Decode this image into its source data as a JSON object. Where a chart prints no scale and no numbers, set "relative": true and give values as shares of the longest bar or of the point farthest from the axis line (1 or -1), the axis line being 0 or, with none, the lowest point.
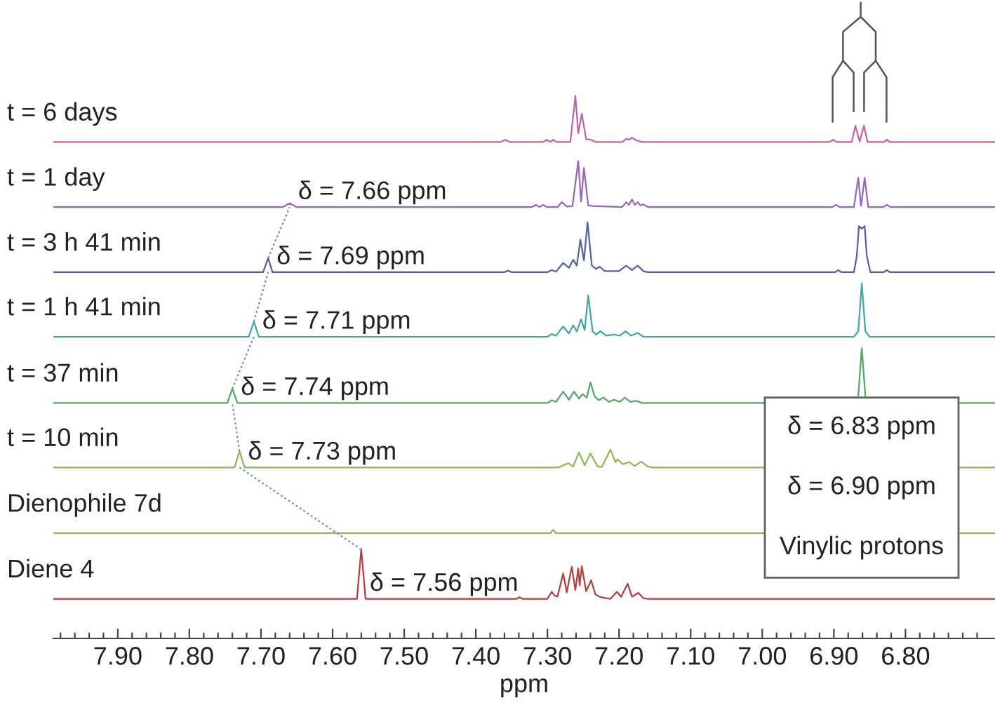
{
  "chart_data": {
    "type": "line",
    "relative": true,
    "xlabel": "ppm",
    "tick_labels": "x",
    "xlim": [
      7.99,
      6.675
    ],
    "xticks": [
      {
        "value": 7.98,
        "label": null
      },
      {
        "value": 7.96,
        "label": null
      },
      {
        "value": 7.94,
        "label": null
      },
      {
        "value": 7.92,
        "label": null
      },
      {
        "value": 7.9,
        "label": "7.90"
      },
      {
        "value": 7.88,
        "label": null
      },
      {
        "value": 7.86,
        "label": null
      },
      {
        "value": 7.84,
        "label": null
      },
      {
        "value": 7.82,
        "label": null
      },
      {
        "value": 7.8,
        "label": "7.80"
      },
      {
        "value": 7.78,
        "label": null
      },
      {
        "value": 7.76,
        "label": null
      },
      {
        "value": 7.74,
        "label": null
      },
      {
        "value": 7.72,
        "label": null
      },
      {
        "value": 7.7,
        "label": "7.70"
      },
      {
        "value": 7.68,
        "label": null
      },
      {
        "value": 7.66,
        "label": null
      },
      {
        "value": 7.64,
        "label": null
      },
      {
        "value": 7.62,
        "label": null
      },
      {
        "value": 7.6,
        "label": "7.60"
      },
      {
        "value": 7.58,
        "label": null
      },
      {
        "value": 7.56,
        "label": null
      },
      {
        "value": 7.54,
        "label": null
      },
      {
        "value": 7.52,
        "label": null
      },
      {
        "value": 7.5,
        "label": "7.50"
      },
      {
        "value": 7.48,
        "label": null
      },
      {
        "value": 7.46,
        "label": null
      },
      {
        "value": 7.44,
        "label": null
      },
      {
        "value": 7.42,
        "label": null
      },
      {
        "value": 7.4,
        "label": "7.40"
      },
      {
        "value": 7.38,
        "label": null
      },
      {
        "value": 7.36,
        "label": null
      },
      {
        "value": 7.34,
        "label": null
      },
      {
        "value": 7.32,
        "label": null
      },
      {
        "value": 7.3,
        "label": "7.30"
      },
      {
        "value": 7.28,
        "label": null
      },
      {
        "value": 7.26,
        "label": null
      },
      {
        "value": 7.24,
        "label": null
      },
      {
        "value": 7.22,
        "label": null
      },
      {
        "value": 7.2,
        "label": "7.20"
      },
      {
        "value": 7.18,
        "label": null
      },
      {
        "value": 7.16,
        "label": null
      },
      {
        "value": 7.14,
        "label": null
      },
      {
        "value": 7.12,
        "label": null
      },
      {
        "value": 7.1,
        "label": "7.10"
      },
      {
        "value": 7.08,
        "label": null
      },
      {
        "value": 7.06,
        "label": null
      },
      {
        "value": 7.04,
        "label": null
      },
      {
        "value": 7.02,
        "label": null
      },
      {
        "value": 7.0,
        "label": "7.00"
      },
      {
        "value": 6.98,
        "label": null
      },
      {
        "value": 6.96,
        "label": null
      },
      {
        "value": 6.94,
        "label": null
      },
      {
        "value": 6.92,
        "label": null
      },
      {
        "value": 6.9,
        "label": "6.90"
      },
      {
        "value": 6.88,
        "label": null
      },
      {
        "value": 6.86,
        "label": null
      },
      {
        "value": 6.84,
        "label": null
      },
      {
        "value": 6.82,
        "label": null
      },
      {
        "value": 6.8,
        "label": "6.80"
      },
      {
        "value": 6.78,
        "label": null
      },
      {
        "value": 6.76,
        "label": null
      },
      {
        "value": 6.74,
        "label": null
      },
      {
        "value": 6.72,
        "label": null
      },
      {
        "value": 6.7,
        "label": null
      }
    ],
    "series": [
      {
        "name": "t = 6 days",
        "color": "#c660a4",
        "x": [
          7.99,
          7.365,
          7.359,
          7.353,
          7.306,
          7.301,
          7.296,
          7.292,
          7.287,
          7.268,
          7.261,
          7.257,
          7.252,
          7.246,
          7.239,
          7.233,
          7.195,
          7.19,
          7.186,
          7.182,
          7.176,
          7.168,
          6.906,
          6.901,
          6.896,
          6.875,
          6.87,
          6.864,
          6.858,
          6.853,
          6.83,
          6.826,
          6.822,
          6.675
        ],
        "values": [
          0.915,
          0.915,
          0.919,
          0.915,
          0.915,
          0.919,
          0.915,
          0.919,
          0.915,
          0.915,
          1.0,
          0.931,
          0.967,
          0.92,
          0.919,
          0.915,
          0.915,
          0.921,
          0.919,
          0.923,
          0.918,
          0.915,
          0.915,
          0.919,
          0.915,
          0.915,
          0.945,
          0.916,
          0.945,
          0.915,
          0.915,
          0.919,
          0.915,
          0.915
        ]
      },
      {
        "name": "t = 1 day",
        "color": "#9a64bc",
        "x": [
          7.99,
          7.67,
          7.66,
          7.65,
          7.322,
          7.316,
          7.311,
          7.306,
          7.301,
          7.286,
          7.28,
          7.273,
          7.265,
          7.257,
          7.253,
          7.249,
          7.243,
          7.236,
          7.196,
          7.19,
          7.186,
          7.182,
          7.178,
          7.174,
          7.17,
          7.166,
          7.16,
          6.902,
          6.897,
          6.892,
          6.872,
          6.866,
          6.862,
          6.857,
          6.852,
          6.831,
          6.826,
          6.821,
          6.675
        ],
        "values": [
          0.795,
          0.795,
          0.802,
          0.795,
          0.795,
          0.799,
          0.795,
          0.799,
          0.795,
          0.795,
          0.804,
          0.796,
          0.797,
          0.88,
          0.805,
          0.867,
          0.798,
          0.797,
          0.795,
          0.804,
          0.799,
          0.809,
          0.799,
          0.804,
          0.798,
          0.8,
          0.795,
          0.795,
          0.799,
          0.795,
          0.795,
          0.849,
          0.797,
          0.849,
          0.795,
          0.795,
          0.799,
          0.795,
          0.795
        ]
      },
      {
        "name": "t = 3 h 41 min",
        "color": "#5060b0",
        "x": [
          7.99,
          7.697,
          7.69,
          7.684,
          7.36,
          7.355,
          7.35,
          7.3,
          7.294,
          7.288,
          7.278,
          7.27,
          7.264,
          7.259,
          7.254,
          7.249,
          7.244,
          7.238,
          7.232,
          7.227,
          7.22,
          7.2,
          7.19,
          7.182,
          7.174,
          7.166,
          7.16,
          6.898,
          6.894,
          6.89,
          6.872,
          6.868,
          6.865,
          6.861,
          6.857,
          6.854,
          6.849,
          6.83,
          6.826,
          6.822,
          6.675
        ],
        "values": [
          0.675,
          0.675,
          0.701,
          0.675,
          0.675,
          0.678,
          0.675,
          0.675,
          0.679,
          0.676,
          0.692,
          0.683,
          0.698,
          0.687,
          0.735,
          0.697,
          0.767,
          0.687,
          0.681,
          0.685,
          0.677,
          0.677,
          0.687,
          0.679,
          0.687,
          0.677,
          0.675,
          0.675,
          0.679,
          0.675,
          0.675,
          0.705,
          0.76,
          0.755,
          0.76,
          0.705,
          0.675,
          0.675,
          0.679,
          0.675,
          0.675
        ]
      },
      {
        "name": "t = 1 h 41 min",
        "color": "#3aa8a6",
        "x": [
          7.99,
          7.717,
          7.71,
          7.703,
          7.3,
          7.294,
          7.288,
          7.278,
          7.27,
          7.264,
          7.259,
          7.253,
          7.248,
          7.243,
          7.237,
          7.232,
          7.226,
          7.218,
          7.207,
          7.199,
          7.191,
          7.183,
          7.174,
          7.166,
          6.872,
          6.866,
          6.861,
          6.856,
          6.85,
          6.675
        ],
        "values": [
          0.556,
          0.556,
          0.584,
          0.556,
          0.556,
          0.561,
          0.558,
          0.575,
          0.562,
          0.577,
          0.566,
          0.588,
          0.568,
          0.632,
          0.566,
          0.56,
          0.566,
          0.558,
          0.56,
          0.558,
          0.566,
          0.558,
          0.563,
          0.556,
          0.556,
          0.566,
          0.654,
          0.566,
          0.556,
          0.556
        ]
      },
      {
        "name": "t = 37 min",
        "color": "#4caa62",
        "x": [
          7.99,
          7.747,
          7.74,
          7.733,
          7.3,
          7.294,
          7.288,
          7.278,
          7.27,
          7.263,
          7.256,
          7.251,
          7.245,
          7.24,
          7.234,
          7.228,
          7.222,
          7.214,
          7.207,
          7.199,
          7.192,
          7.184,
          7.176,
          7.168,
          6.998,
          6.99,
          6.866,
          6.861,
          6.856,
          6.85,
          6.724,
          6.675
        ],
        "values": [
          0.434,
          0.434,
          0.46,
          0.434,
          0.434,
          0.439,
          0.436,
          0.455,
          0.44,
          0.455,
          0.442,
          0.45,
          0.444,
          0.472,
          0.446,
          0.439,
          0.444,
          0.436,
          0.44,
          0.436,
          0.444,
          0.436,
          0.438,
          0.434,
          0.434,
          null,
          0.447,
          0.535,
          0.447,
          null,
          0.434,
          0.434
        ]
      },
      {
        "name": "t = 10 min",
        "color": "#8cba52",
        "x": [
          7.99,
          7.737,
          7.73,
          7.723,
          7.285,
          7.271,
          7.264,
          7.256,
          7.248,
          7.24,
          7.23,
          7.224,
          7.212,
          7.205,
          7.202,
          7.195,
          7.186,
          7.178,
          7.169,
          7.16,
          7.153,
          6.998,
          6.99,
          6.724,
          6.675
        ],
        "values": [
          0.315,
          0.315,
          0.345,
          0.315,
          0.315,
          0.323,
          0.317,
          0.343,
          0.319,
          0.341,
          0.317,
          0.316,
          0.348,
          0.325,
          0.33,
          0.321,
          0.325,
          0.318,
          0.326,
          0.317,
          0.315,
          0.315,
          null,
          0.315,
          0.315
        ]
      },
      {
        "name": "Dienophile 7d",
        "color": "#b0a462",
        "x": [
          7.99,
          7.296,
          7.292,
          7.288,
          6.998,
          6.99,
          6.724,
          6.675
        ],
        "values": [
          0.194,
          0.194,
          0.2,
          0.194,
          0.194,
          null,
          0.194,
          0.194
        ]
      },
      {
        "name": "Diene 4",
        "color": "#bc3a3a",
        "x": [
          7.99,
          7.566,
          7.56,
          7.554,
          7.343,
          7.339,
          7.335,
          7.3,
          7.294,
          7.29,
          7.286,
          7.278,
          7.273,
          7.266,
          7.261,
          7.257,
          7.255,
          7.252,
          7.246,
          7.239,
          7.233,
          7.226,
          7.212,
          7.203,
          7.197,
          7.188,
          7.182,
          7.173,
          7.166,
          7.16,
          6.675
        ],
        "values": [
          0.073,
          0.073,
          0.164,
          0.073,
          0.073,
          0.076,
          0.073,
          0.073,
          0.086,
          0.079,
          0.077,
          0.12,
          0.085,
          0.132,
          0.089,
          0.129,
          0.098,
          0.133,
          0.087,
          0.107,
          0.081,
          0.076,
          0.073,
          0.086,
          0.077,
          0.101,
          0.077,
          0.084,
          0.074,
          0.073,
          0.073
        ]
      },
      {
        "type": "line",
        "color": "#7088d0",
        "line_style": "dotted",
        "x": [
          7.56,
          7.73
        ],
        "values": [
          0.164,
          0.315
        ]
      },
      {
        "type": "line",
        "color": "#7088d0",
        "line_style": "dotted",
        "x": [
          7.73,
          7.74
        ],
        "values": [
          0.345,
          0.434
        ]
      },
      {
        "type": "line",
        "color": "#7088d0",
        "line_style": "dotted",
        "x": [
          7.74,
          7.71
        ],
        "values": [
          0.46,
          0.556
        ]
      },
      {
        "type": "line",
        "color": "#7088d0",
        "line_style": "dotted",
        "x": [
          7.71,
          7.69
        ],
        "values": [
          0.584,
          0.675
        ]
      },
      {
        "type": "line",
        "color": "#7088d0",
        "line_style": "dotted",
        "x": [
          7.69,
          7.66
        ],
        "values": [
          0.701,
          0.795
        ]
      }
    ],
    "annotations": [
      {
        "text": "δ = 7.66 ppm",
        "x": 7.66,
        "y": 0.802
      },
      {
        "text": "δ = 7.69 ppm",
        "x": 7.69,
        "y": 0.701
      },
      {
        "text": "δ = 7.71 ppm",
        "x": 7.71,
        "y": 0.584
      },
      {
        "text": "δ = 7.74 ppm",
        "x": 7.74,
        "y": 0.46
      },
      {
        "text": "δ = 7.73 ppm",
        "x": 7.73,
        "y": 0.345
      },
      {
        "text": "δ = 7.56 ppm",
        "x": 7.56,
        "y": 0.164
      },
      "δ = 6.83 ppm",
      "δ = 6.90 ppm",
      "Vinylic protons"
    ]
  }
}
